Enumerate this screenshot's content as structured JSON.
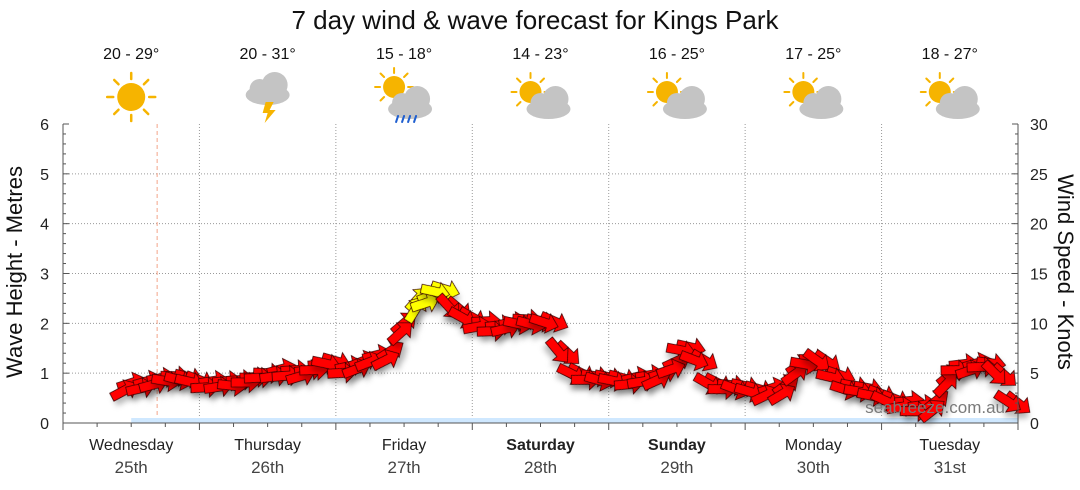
{
  "chart_data": {
    "type": "line",
    "title": "7 day wind & wave forecast for Kings Park",
    "y_left_label": "Wave Height - Metres",
    "y_right_label": "Wind Speed - Knots",
    "y_left_ticks": [
      "0",
      "1",
      "2",
      "3",
      "4",
      "5",
      "6"
    ],
    "y_right_ticks": [
      "0",
      "5",
      "10",
      "15",
      "20",
      "25",
      "30"
    ],
    "ylim_left": [
      0,
      6
    ],
    "ylim_right": [
      0,
      30
    ],
    "grid": true,
    "days": [
      {
        "day": "Wednesday",
        "date": "25th",
        "temp": "20 - 29°",
        "icon": "sun-icon",
        "bold": false
      },
      {
        "day": "Thursday",
        "date": "26th",
        "temp": "20 - 31°",
        "icon": "storm-cloud-icon",
        "bold": false
      },
      {
        "day": "Friday",
        "date": "27th",
        "temp": "15 - 18°",
        "icon": "sun-cloud-rain-icon",
        "bold": false
      },
      {
        "day": "Saturday",
        "date": "28th",
        "temp": "14 - 23°",
        "icon": "sun-cloud-icon",
        "bold": true
      },
      {
        "day": "Sunday",
        "date": "29th",
        "temp": "16 - 25°",
        "icon": "sun-cloud-icon",
        "bold": true
      },
      {
        "day": "Monday",
        "date": "30th",
        "temp": "17 - 25°",
        "icon": "sun-cloud-icon",
        "bold": false
      },
      {
        "day": "Tuesday",
        "date": "31st",
        "temp": "18 - 27°",
        "icon": "sun-cloud-icon",
        "bold": false
      }
    ],
    "wind_series": {
      "name": "",
      "x_days": [
        0.5,
        0.62,
        0.72,
        0.82,
        0.92,
        1.0,
        1.1,
        1.2,
        1.3,
        1.4,
        1.5,
        1.6,
        1.7,
        1.8,
        1.9,
        2.0,
        2.1,
        2.2,
        2.3,
        2.4,
        2.5,
        2.6,
        2.7,
        2.8,
        2.9,
        3.0,
        3.1,
        3.2,
        3.3,
        3.4,
        3.5,
        3.6,
        3.7,
        3.8,
        3.9,
        4.0,
        4.1,
        4.2,
        4.3,
        4.4,
        4.5,
        4.6,
        4.7,
        4.8,
        4.9,
        5.0,
        5.1,
        5.2,
        5.3,
        5.4,
        5.5,
        5.6,
        5.7,
        5.8,
        5.9,
        6.0,
        6.1,
        6.2,
        6.3,
        6.4,
        6.5,
        6.6,
        6.7,
        6.8,
        6.9,
        7.0
      ],
      "knots": [
        4,
        4.2,
        4.5,
        4.7,
        4.6,
        4.3,
        4.2,
        4.2,
        4.3,
        4.6,
        5,
        5.4,
        5.3,
        5.3,
        5.9,
        6.2,
        5.7,
        6.2,
        6.8,
        7.2,
        10,
        12.4,
        12.8,
        13.4,
        11.5,
        10.6,
        10.2,
        9.8,
        10.1,
        10.4,
        10.2,
        10.2,
        7.0,
        5.0,
        4.7,
        4.6,
        4.5,
        4.6,
        4.8,
        5.0,
        6.2,
        7.6,
        6.3,
        4.0,
        3.8,
        3.7,
        3.4,
        3.5,
        3.8,
        5.8,
        6.4,
        6.2,
        4.8,
        3.7,
        3.5,
        2.9,
        2.4,
        2.2,
        1.8,
        2.2,
        4.8,
        5.9,
        6.0,
        6.0,
        4.8,
        2.0
      ],
      "colors": {
        "strong": "#ff0000",
        "moderate": "#ffff00"
      }
    },
    "wave_series": {
      "name": "",
      "x_days": [
        0.5,
        1,
        1.5,
        2,
        2.5,
        3,
        3.5,
        4,
        4.5,
        5,
        5.5,
        6,
        6.5,
        7
      ],
      "metres": [
        0.1,
        0.1,
        0.1,
        0.1,
        0.1,
        0.1,
        0.1,
        0.1,
        0.1,
        0.1,
        0.1,
        0.1,
        0.1,
        0.1
      ],
      "color": "#cfe8ff"
    }
  },
  "watermark": "seabreeze.com.au"
}
